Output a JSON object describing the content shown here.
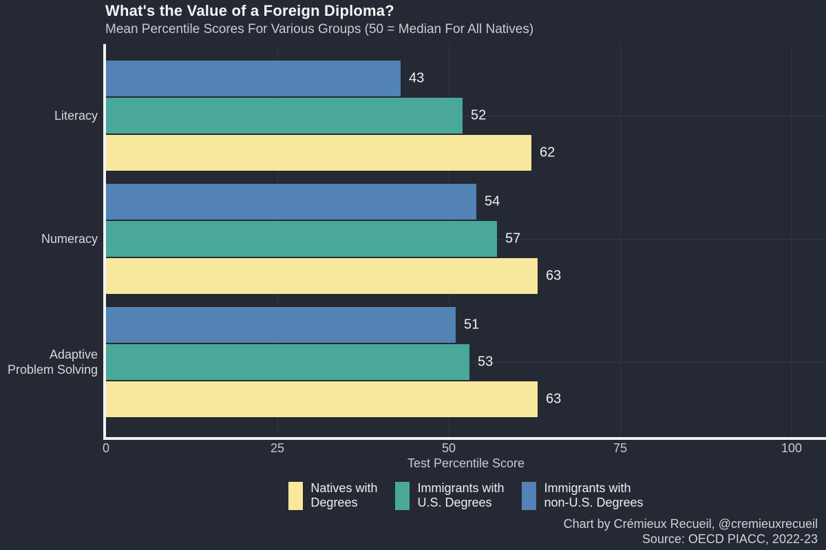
{
  "header": {
    "title": "What's the Value of a Foreign Diploma?",
    "subtitle": "Mean Percentile Scores For Various Groups (50 = Median For All Natives)"
  },
  "chart_data": {
    "type": "bar",
    "orientation": "horizontal",
    "title": "What's the Value of a Foreign Diploma?",
    "subtitle": "Mean Percentile Scores For Various Groups (50 = Median For All Natives)",
    "categories": [
      "Literacy",
      "Numeracy",
      "Adaptive\nProblem Solving"
    ],
    "series": [
      {
        "name": "Natives with Degrees",
        "legend_label": "Natives with\nDegrees",
        "color": "#f8e89d",
        "values": [
          62,
          63,
          63
        ]
      },
      {
        "name": "Immigrants with U.S. Degrees",
        "legend_label": "Immigrants with\nU.S. Degrees",
        "color": "#49a89a",
        "values": [
          52,
          57,
          53
        ]
      },
      {
        "name": "Immigrants with non-U.S. Degrees",
        "legend_label": "Immigrants with\nnon-U.S. Degrees",
        "color": "#5382b5",
        "values": [
          43,
          54,
          51
        ]
      }
    ],
    "bar_order_top_to_bottom": [
      "Immigrants with non-U.S. Degrees",
      "Immigrants with U.S. Degrees",
      "Natives with Degrees"
    ],
    "xlabel": "Test Percentile Score",
    "ylabel": "",
    "x_ticks": [
      0,
      25,
      50,
      75,
      100
    ],
    "xlim": [
      0,
      100
    ],
    "grid": true,
    "legend_position": "bottom"
  },
  "footer": {
    "credit_line1": "Chart by Crémieux Recueil, @cremieuxrecueil",
    "credit_line2": "Source: OECD PIACC, 2022-23"
  },
  "colors": {
    "background": "#242933",
    "axis": "#f2f3f5",
    "grid": "#323947",
    "title_text": "#f3f4f6",
    "muted_text": "#c7cbd2",
    "category_text": "#d5d8dd",
    "value_label_text": "#eef0f3",
    "series_natives": "#f8e89d",
    "series_us_degrees": "#49a89a",
    "series_non_us_degrees": "#5382b5"
  }
}
